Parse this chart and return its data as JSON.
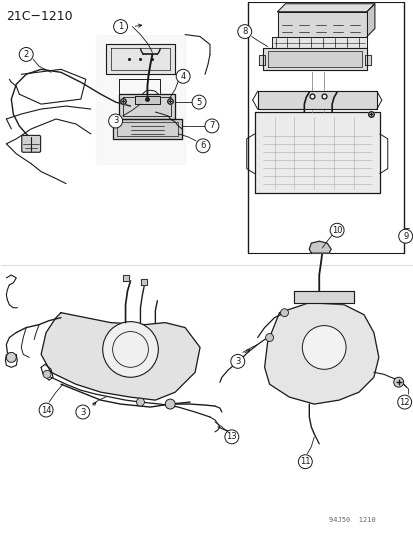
{
  "title": "21C−1210",
  "watermark": "94J50  1210",
  "background_color": "#ffffff",
  "line_color": "#1a1a1a",
  "gray_fill": "#e8e8e8",
  "dark_fill": "#c8c8c8",
  "fig_width": 4.14,
  "fig_height": 5.33,
  "dpi": 100
}
